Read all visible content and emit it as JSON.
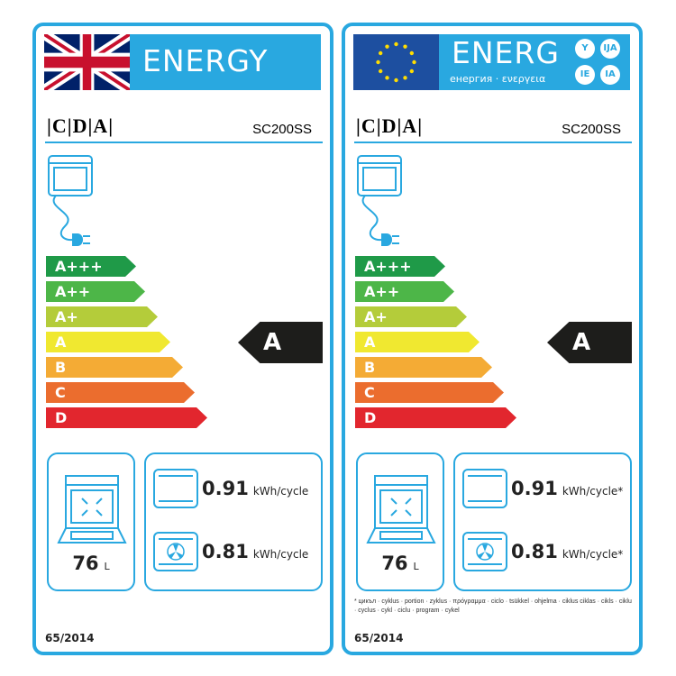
{
  "labels": [
    {
      "variant": "uk",
      "header": {
        "word": "ENERGY",
        "flag": "union-jack"
      },
      "brand": "|C|D|A|",
      "model": "SC200SS",
      "scale": [
        "A+++",
        "A++",
        "A+",
        "A",
        "B",
        "C",
        "D"
      ],
      "rating": "A",
      "volume": {
        "value": "76",
        "unit": "L"
      },
      "conventional": {
        "value": "0.91",
        "unit": "kWh/cycle"
      },
      "fan": {
        "value": "0.81",
        "unit": "kWh/cycle"
      },
      "regulation": "65/2014"
    },
    {
      "variant": "eu",
      "header": {
        "word": "ENERG",
        "subtitle": "енергия · ενεργεια",
        "suffixes": [
          "Y",
          "IJA",
          "IE",
          "IA"
        ],
        "flag": "eu-flag"
      },
      "brand": "|C|D|A|",
      "model": "SC200SS",
      "scale": [
        "A+++",
        "A++",
        "A+",
        "A",
        "B",
        "C",
        "D"
      ],
      "rating": "A",
      "volume": {
        "value": "76",
        "unit": "L"
      },
      "conventional": {
        "value": "0.91",
        "unit": "kWh/cycle*"
      },
      "fan": {
        "value": "0.81",
        "unit": "kWh/cycle*"
      },
      "footnote": "* цикъл · cyklus · portion · zyklus · πρόγραμμα · ciclo · tsükkel · ohjelma · ciklus ciklas · cikls · ciklu · cyclus · cykl · ciclu · program · cykel",
      "regulation": "65/2014"
    }
  ],
  "colors": {
    "frame": "#29a8e0",
    "scale": [
      "#1f9a48",
      "#4db648",
      "#b4cc3a",
      "#f0e830",
      "#f4ab35",
      "#eb6d2e",
      "#e2262e"
    ],
    "indicator": "#1d1d1b"
  }
}
